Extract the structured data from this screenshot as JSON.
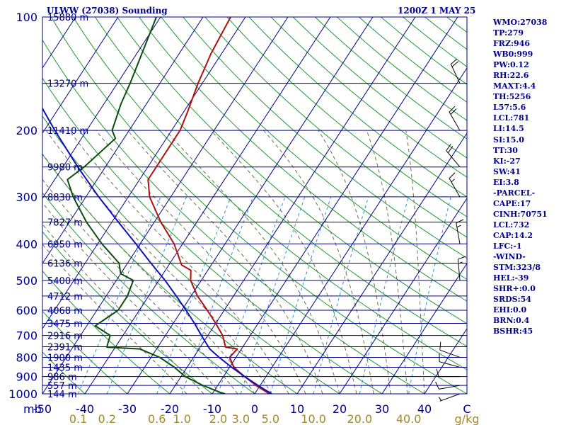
{
  "header": {
    "title": "ULWW (27038) Sounding",
    "valid_time": "1200Z  1 MAY 25"
  },
  "indices": [
    "WMO:27038",
    "TP:279",
    "FRZ:946",
    "WB0:999",
    "PW:0.12",
    "RH:22.6",
    "MAXT:4.4",
    "TH:5256",
    "L57:5.6",
    "LCL:781",
    "LI:14.5",
    "SI:15.0",
    "TT:30",
    "KI:-27",
    "SW:41",
    "EI:3.8",
    "-PARCEL-",
    "CAPE:17",
    "CINH:70751",
    "LCL:732",
    "CAP:14.2",
    "LFC:-1",
    "-WIND-",
    "STM:323/8",
    "HEL:-39",
    "SHR+:0.0",
    "SRDS:54",
    "EHI:0.0",
    "BRN:0.4",
    "BSHR:45"
  ],
  "colors": {
    "frame": "#00008b",
    "isobar": "#00008b",
    "isotherm": "#00008b",
    "dry_adiabat": "#1f9a2f",
    "moist_adiabat": "#6e6e4e",
    "mixing_ratio": "#2c8fd6",
    "temperature": "#b01010",
    "dewpoint": "#0b4d0b",
    "parcel": "#1010b8",
    "mixing_ratio_labels": "#a08a2a"
  },
  "chart_data": {
    "type": "skew-t log-p",
    "pressure_unit": "mb",
    "temperature_unit": "C",
    "mixing_ratio_unit": "g/kg",
    "y_axis_label": "mb",
    "x_range_c": [
      -50,
      50
    ],
    "p_range_mb": [
      1000,
      100
    ],
    "pressure_ticks": [
      100,
      200,
      300,
      400,
      500,
      600,
      700,
      800,
      900,
      1000
    ],
    "temperature_ticks": [
      -50,
      -40,
      -30,
      -20,
      -10,
      0,
      10,
      20,
      30,
      40,
      "C"
    ],
    "mixing_ratio_ticks": [
      "0.1",
      "0.2",
      "0.6",
      "1.0",
      "2.0",
      "3.0",
      "5.0",
      "10.0",
      "20.0",
      "40.0"
    ],
    "mixing_ratio_ticks_unit": "g/kg",
    "height_levels": [
      {
        "label": "15880 m",
        "p": 100
      },
      {
        "label": "13270 m",
        "p": 150
      },
      {
        "label": "11410 m",
        "p": 200
      },
      {
        "label": "9980 m",
        "p": 250
      },
      {
        "label": "8830 m",
        "p": 300
      },
      {
        "label": "7827 m",
        "p": 350
      },
      {
        "label": "6950 m",
        "p": 400
      },
      {
        "label": "6136 m",
        "p": 450
      },
      {
        "label": "5400 m",
        "p": 500
      },
      {
        "label": "4712 m",
        "p": 550
      },
      {
        "label": "4068 m",
        "p": 600
      },
      {
        "label": "3475 m",
        "p": 650
      },
      {
        "label": "2916 m",
        "p": 700
      },
      {
        "label": "2391 m",
        "p": 750
      },
      {
        "label": "1900 m",
        "p": 800
      },
      {
        "label": "1435 m",
        "p": 850
      },
      {
        "label": "986 m",
        "p": 900
      },
      {
        "label": "557 m",
        "p": 950
      },
      {
        "label": "144 m",
        "p": 1000
      }
    ],
    "series": [
      {
        "key": "temperature",
        "points": [
          [
            1000,
            4.0
          ],
          [
            995,
            3.0
          ],
          [
            950,
            -1.0
          ],
          [
            900,
            -5.0
          ],
          [
            850,
            -9.0
          ],
          [
            800,
            -11.5
          ],
          [
            760,
            -11.0
          ],
          [
            752,
            -14.0
          ],
          [
            700,
            -16.5
          ],
          [
            650,
            -20.0
          ],
          [
            600,
            -24.0
          ],
          [
            550,
            -28.5
          ],
          [
            500,
            -32.5
          ],
          [
            470,
            -34.0
          ],
          [
            455,
            -37.0
          ],
          [
            400,
            -42.0
          ],
          [
            350,
            -48.5
          ],
          [
            300,
            -55.0
          ],
          [
            270,
            -58.0
          ],
          [
            250,
            -58.0
          ],
          [
            200,
            -58.0
          ],
          [
            180,
            -59.0
          ],
          [
            150,
            -61.0
          ],
          [
            125,
            -62.5
          ],
          [
            100,
            -63.5
          ]
        ]
      },
      {
        "key": "dewpoint",
        "points": [
          [
            1000,
            -7.0
          ],
          [
            990,
            -8.5
          ],
          [
            950,
            -13.5
          ],
          [
            900,
            -19.0
          ],
          [
            850,
            -23.0
          ],
          [
            800,
            -28.0
          ],
          [
            760,
            -34.0
          ],
          [
            752,
            -42.0
          ],
          [
            700,
            -43.0
          ],
          [
            660,
            -48.0
          ],
          [
            600,
            -45.0
          ],
          [
            550,
            -45.0
          ],
          [
            500,
            -46.0
          ],
          [
            480,
            -50.0
          ],
          [
            450,
            -52.0
          ],
          [
            400,
            -59.0
          ],
          [
            350,
            -66.0
          ],
          [
            300,
            -73.0
          ],
          [
            270,
            -77.0
          ],
          [
            250,
            -75.0
          ],
          [
            210,
            -72.0
          ],
          [
            200,
            -74.0
          ],
          [
            170,
            -76.0
          ],
          [
            150,
            -77.0
          ],
          [
            100,
            -81.0
          ]
        ]
      },
      {
        "key": "parcel",
        "points": [
          [
            1000,
            4.0
          ],
          [
            950,
            -0.5
          ],
          [
            900,
            -5.0
          ],
          [
            850,
            -9.5
          ],
          [
            800,
            -14.0
          ],
          [
            760,
            -17.5
          ],
          [
            700,
            -21.5
          ],
          [
            650,
            -25.0
          ],
          [
            600,
            -29.0
          ],
          [
            550,
            -33.5
          ],
          [
            500,
            -38.5
          ],
          [
            450,
            -44.5
          ],
          [
            400,
            -51.0
          ],
          [
            350,
            -58.5
          ],
          [
            300,
            -67.0
          ],
          [
            250,
            -76.5
          ],
          [
            200,
            -87.5
          ],
          [
            150,
            -101.0
          ],
          [
            100,
            -119.0
          ]
        ]
      }
    ],
    "wind_barbs": [
      {
        "p": 1000,
        "dir": 250,
        "speed_kt": 5
      },
      {
        "p": 950,
        "dir": 260,
        "speed_kt": 10
      },
      {
        "p": 900,
        "dir": 270,
        "speed_kt": 10
      },
      {
        "p": 850,
        "dir": 285,
        "speed_kt": 10
      },
      {
        "p": 800,
        "dir": 290,
        "speed_kt": 10
      },
      {
        "p": 500,
        "dir": 355,
        "speed_kt": 15
      },
      {
        "p": 400,
        "dir": 350,
        "speed_kt": 15
      },
      {
        "p": 300,
        "dir": 330,
        "speed_kt": 15
      },
      {
        "p": 250,
        "dir": 320,
        "speed_kt": 20
      },
      {
        "p": 200,
        "dir": 330,
        "speed_kt": 20
      },
      {
        "p": 150,
        "dir": 335,
        "speed_kt": 20
      }
    ]
  }
}
